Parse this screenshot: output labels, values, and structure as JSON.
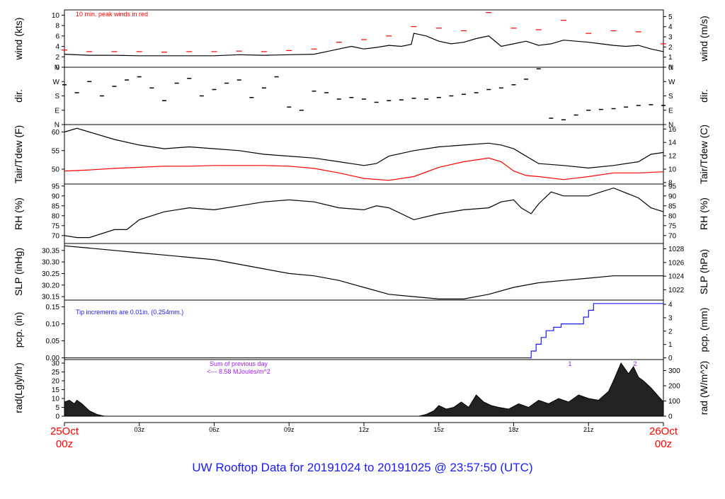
{
  "footer": {
    "title": "UW Rooftop Data for 20191024  to  20191025 @ 23:57:50  (UTC)",
    "title_color": "#1a1aff"
  },
  "time_axis": {
    "tick_labels": [
      "03z",
      "06z",
      "09z",
      "12z",
      "15z",
      "18z",
      "21z"
    ],
    "tick_hours": [
      3,
      6,
      9,
      12,
      15,
      18,
      21
    ],
    "start_date": "25Oct",
    "start_time": "00z",
    "end_date": "26Oct",
    "end_time": "00z",
    "endpoint_color": "#ff0000",
    "xlim_hours": [
      0,
      24
    ]
  },
  "chart_data": [
    {
      "id": "wind",
      "type": "line",
      "ylabel_left": "wind (kts)",
      "ylabel_right": "wind (m/s)",
      "ylim": [
        0,
        11
      ],
      "left_ticks": [
        "0",
        "2",
        "4",
        "6",
        "8",
        "10"
      ],
      "right_ticks": [
        "0",
        "1",
        "2",
        "3",
        "4",
        "5"
      ],
      "annotation": "10 min. peak winds in red",
      "annotation_color": "#ff0000",
      "series": [
        {
          "color": "#000000",
          "x": [
            0,
            1,
            2,
            3,
            4,
            5,
            6,
            7,
            8,
            9,
            10,
            10.5,
            11,
            11.5,
            12,
            12.5,
            13,
            13.5,
            13.9,
            14,
            14.5,
            15,
            15.5,
            16,
            16.5,
            17,
            17.5,
            18,
            18.5,
            19,
            19.5,
            20,
            20.5,
            21,
            21.5,
            22,
            22.5,
            23,
            23.5,
            24
          ],
          "y": [
            2.5,
            2.3,
            2.3,
            2.2,
            2.2,
            2.2,
            2.2,
            2.4,
            2.3,
            2.4,
            2.5,
            3.0,
            3.5,
            4.0,
            3.5,
            3.8,
            4.2,
            4.0,
            4.4,
            6.5,
            6.0,
            5.0,
            4.5,
            4.8,
            5.5,
            6.0,
            4.0,
            4.5,
            5.0,
            4.2,
            4.5,
            5.2,
            5.0,
            4.8,
            4.5,
            4.2,
            4.0,
            4.2,
            3.5,
            3.0
          ]
        },
        {
          "color": "#ff0000",
          "x": [
            0,
            1,
            2,
            3,
            4,
            5,
            6,
            7,
            8,
            9,
            10,
            11,
            12,
            13,
            14,
            15,
            16,
            17,
            18,
            19,
            20,
            21,
            22,
            23,
            24
          ],
          "y": [
            3.3,
            3.0,
            3.0,
            3.0,
            2.9,
            3.0,
            3.0,
            3.1,
            3.0,
            3.2,
            3.5,
            4.8,
            5.3,
            6.0,
            7.8,
            7.5,
            7.0,
            10.5,
            7.5,
            7.2,
            9.0,
            6.5,
            7.0,
            6.8,
            4.5
          ]
        }
      ]
    },
    {
      "id": "dir",
      "type": "scatter",
      "ylabel_left": "dir.",
      "ylabel_right": "dir.",
      "ylim": [
        0,
        360
      ],
      "left_ticks": [
        "N",
        "E",
        "S",
        "W",
        "N"
      ],
      "right_ticks": [
        "N",
        "E",
        "S",
        "W",
        "N"
      ],
      "tick_values": [
        0,
        90,
        180,
        270,
        360
      ],
      "series": [
        {
          "color": "#000000",
          "x": [
            0,
            0.5,
            1,
            1.5,
            2,
            2.5,
            3,
            3.5,
            4,
            4.5,
            5,
            5.5,
            6,
            6.5,
            7,
            7.5,
            8,
            8.5,
            9,
            9.5,
            10,
            10.5,
            11,
            11.5,
            12,
            12.5,
            13,
            13.5,
            14,
            14.5,
            15,
            15.5,
            16,
            16.5,
            17,
            17.5,
            18,
            18.5,
            19,
            19.5,
            20,
            20.5,
            21,
            21.5,
            22,
            22.5,
            23,
            23.5,
            24
          ],
          "y": [
            250,
            200,
            270,
            180,
            240,
            280,
            300,
            230,
            150,
            260,
            290,
            180,
            220,
            260,
            280,
            170,
            230,
            300,
            110,
            90,
            210,
            200,
            160,
            170,
            160,
            140,
            150,
            155,
            165,
            160,
            170,
            180,
            190,
            200,
            220,
            230,
            250,
            285,
            350,
            40,
            30,
            60,
            90,
            95,
            100,
            110,
            120,
            125,
            120
          ]
        }
      ]
    },
    {
      "id": "temp",
      "type": "line",
      "ylabel_left": "Tair/Tdew (F)",
      "ylabel_right": "Tair/Tdew (C)",
      "ylim": [
        46,
        62
      ],
      "left_ticks": [
        "50",
        "55",
        "60"
      ],
      "left_tick_values": [
        50,
        55,
        60
      ],
      "right_ticks": [
        "8",
        "10",
        "12",
        "14",
        "16"
      ],
      "right_tick_values": [
        8,
        10,
        12,
        14,
        16
      ],
      "series": [
        {
          "color": "#000000",
          "x": [
            0,
            0.5,
            1,
            2,
            3,
            4,
            5,
            6,
            7,
            8,
            9,
            10,
            11,
            12,
            12.5,
            13,
            14,
            15,
            16,
            17,
            17.5,
            18,
            19,
            20,
            21,
            22,
            23,
            23.5,
            24
          ],
          "y": [
            60.0,
            61.0,
            60.0,
            58.0,
            56.5,
            55.5,
            56.0,
            55.5,
            55.0,
            54.0,
            53.5,
            53.0,
            52.0,
            51.0,
            51.5,
            53.5,
            55.0,
            56.0,
            56.5,
            57.0,
            56.5,
            55.5,
            51.5,
            51.0,
            50.3,
            51.0,
            52.0,
            54.0,
            54.5
          ]
        },
        {
          "color": "#ff0000",
          "x": [
            0,
            1,
            2,
            3,
            4,
            5,
            6,
            7,
            8,
            9,
            10,
            11,
            12,
            13,
            14,
            15,
            16,
            17,
            17.5,
            18,
            18.5,
            19,
            20,
            21,
            22,
            23,
            24
          ],
          "y": [
            49.5,
            49.8,
            50.2,
            50.5,
            50.8,
            50.8,
            51.0,
            51.0,
            51.0,
            50.8,
            50.2,
            49.0,
            47.5,
            47.0,
            48.0,
            50.5,
            52.0,
            53.0,
            52.0,
            49.5,
            48.3,
            48.0,
            47.2,
            48.0,
            49.0,
            49.0,
            49.3
          ]
        }
      ]
    },
    {
      "id": "rh",
      "type": "line",
      "ylabel_left": "RH (%)",
      "ylabel_right": "RH (%)",
      "ylim": [
        66,
        96
      ],
      "left_ticks": [
        "70",
        "75",
        "80",
        "85",
        "90",
        "95"
      ],
      "right_ticks": [
        "70",
        "75",
        "80",
        "85",
        "90",
        "95"
      ],
      "tick_values": [
        70,
        75,
        80,
        85,
        90,
        95
      ],
      "series": [
        {
          "color": "#000000",
          "x": [
            0,
            0.5,
            1,
            2,
            2.5,
            3,
            4,
            5,
            6,
            7,
            8,
            9,
            10,
            11,
            12,
            12.5,
            13,
            14,
            15,
            16,
            17,
            17.5,
            18,
            18.3,
            18.7,
            19,
            19.5,
            20,
            21,
            22,
            23,
            23.5,
            24
          ],
          "y": [
            70,
            69,
            69,
            73,
            73,
            78,
            82,
            84,
            83,
            85,
            87,
            88,
            87,
            84,
            83,
            85,
            84,
            78,
            81,
            83,
            84,
            87,
            88,
            84,
            81,
            86,
            92,
            90,
            90,
            94,
            89,
            84,
            82
          ]
        }
      ]
    },
    {
      "id": "slp",
      "type": "line",
      "ylabel_left": "SLP (inHg)",
      "ylabel_right": "SLP (hPa)",
      "ylim": [
        30.135,
        30.38
      ],
      "left_ticks": [
        "30.15",
        "30.20",
        "30.25",
        "30.30",
        "30.35"
      ],
      "left_tick_values": [
        30.15,
        30.2,
        30.25,
        30.3,
        30.35
      ],
      "right_ticks": [
        "1022",
        "1024",
        "1026",
        "1028"
      ],
      "right_tick_values": [
        1022,
        1024,
        1026,
        1028
      ],
      "series": [
        {
          "color": "#000000",
          "x": [
            0,
            1,
            2,
            3,
            4,
            5,
            6,
            7,
            8,
            9,
            10,
            11,
            12,
            13,
            14,
            15,
            16,
            17,
            18,
            19,
            20,
            21,
            22,
            23,
            24
          ],
          "y": [
            30.37,
            30.36,
            30.35,
            30.34,
            30.33,
            30.32,
            30.31,
            30.29,
            30.27,
            30.25,
            30.24,
            30.22,
            30.19,
            30.16,
            30.15,
            30.14,
            30.14,
            30.16,
            30.19,
            30.21,
            30.22,
            30.23,
            30.24,
            30.24,
            30.24
          ]
        }
      ]
    },
    {
      "id": "pcp",
      "type": "line",
      "ylabel_left": "pcp. (in)",
      "ylabel_right": "pcp. (mm)",
      "ylim": [
        -0.005,
        0.17
      ],
      "left_ticks": [
        "0.00",
        "0.05",
        "0.10",
        "0.15"
      ],
      "left_tick_values": [
        0,
        0.05,
        0.1,
        0.15
      ],
      "right_ticks": [
        "0",
        "1",
        "2",
        "3",
        "4"
      ],
      "right_tick_values": [
        0,
        1,
        2,
        3,
        4
      ],
      "annotation": "Tip increments are 0.01in. (0.254mm.)",
      "annotation_color": "#1a1aff",
      "series": [
        {
          "color": "#1a1aff",
          "x": [
            18.6,
            18.7,
            18.9,
            19.1,
            19.3,
            19.6,
            19.9,
            20.5,
            20.8,
            21.0,
            21.2,
            24
          ],
          "y": [
            0.0,
            0.02,
            0.04,
            0.06,
            0.08,
            0.09,
            0.1,
            0.1,
            0.12,
            0.14,
            0.16,
            0.16
          ]
        }
      ]
    },
    {
      "id": "rad",
      "type": "area",
      "ylabel_left": "rad(Lgly/hr)",
      "ylabel_right": "rad (W/m^2)",
      "ylim": [
        0,
        32
      ],
      "left_ticks": [
        "0",
        "5",
        "10",
        "15",
        "20",
        "25",
        "30"
      ],
      "left_tick_values": [
        0,
        5,
        10,
        15,
        20,
        25,
        30
      ],
      "right_ticks": [
        "0",
        "100",
        "200",
        "300"
      ],
      "right_tick_values": [
        0,
        100,
        200,
        300
      ],
      "annotation_lines": [
        "Sum of previous day",
        "<--- 8.58 MJoules/m^2"
      ],
      "marker_labels": [
        "1",
        "2"
      ],
      "annotation_color": "#a020f0",
      "series": [
        {
          "color": "#000000",
          "x": [
            0,
            0.2,
            0.4,
            0.5,
            0.7,
            1.0,
            1.3,
            1.6,
            14.2,
            14.5,
            14.8,
            15.0,
            15.3,
            15.6,
            15.9,
            16.2,
            16.5,
            16.8,
            17.1,
            17.4,
            17.8,
            18.2,
            18.6,
            19.0,
            19.4,
            19.8,
            20.2,
            20.6,
            21.0,
            21.4,
            21.8,
            22.0,
            22.3,
            22.6,
            22.8,
            23.0,
            23.2,
            23.5,
            24
          ],
          "y": [
            8,
            9,
            7,
            9,
            7,
            3,
            1,
            0,
            0,
            1,
            3,
            6,
            4,
            5,
            8,
            5,
            12,
            8,
            6,
            5,
            4,
            7,
            5,
            9,
            7,
            10,
            8,
            12,
            10,
            9,
            14,
            20,
            30,
            24,
            28,
            22,
            20,
            16,
            8
          ]
        }
      ]
    }
  ]
}
